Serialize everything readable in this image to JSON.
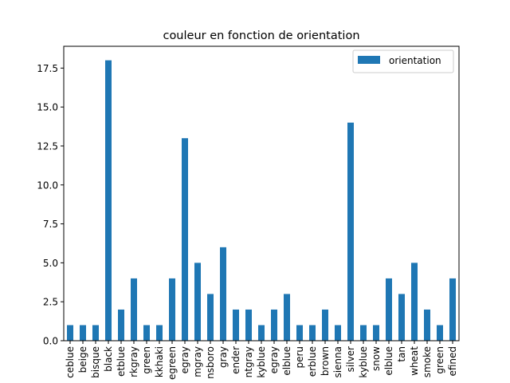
{
  "chart_data": {
    "type": "bar",
    "title": "couleur en fonction de orientation",
    "xlabel": "",
    "ylabel": "",
    "ylim": [
      0,
      18.9
    ],
    "yticks": [
      "0.0",
      "2.5",
      "5.0",
      "7.5",
      "10.0",
      "12.5",
      "15.0",
      "17.5"
    ],
    "ytick_values": [
      0,
      2.5,
      5,
      7.5,
      10,
      12.5,
      15,
      17.5
    ],
    "legend_position": "top-right",
    "grid": false,
    "bar_color": "#1f77b4",
    "categories": [
      "ceblue",
      "beige",
      "bisque",
      "black",
      "etblue",
      "rkgray",
      "green",
      "kkhaki",
      "egreen",
      "egray",
      "mgray",
      "nsboro",
      "gray",
      "ender",
      "ntgray",
      "kyblue",
      "egray",
      "elblue",
      "peru",
      "erblue",
      "brown",
      "sienna",
      "silver",
      "kyblue",
      "snow",
      "elblue",
      "tan",
      "wheat",
      "smoke",
      "green",
      "efined"
    ],
    "series": [
      {
        "name": "orientation",
        "values": [
          1,
          1,
          1,
          18,
          2,
          4,
          1,
          1,
          4,
          13,
          5,
          3,
          6,
          2,
          2,
          1,
          2,
          3,
          1,
          1,
          2,
          1,
          14,
          1,
          1,
          4,
          3,
          5,
          2,
          1,
          4
        ]
      }
    ]
  }
}
